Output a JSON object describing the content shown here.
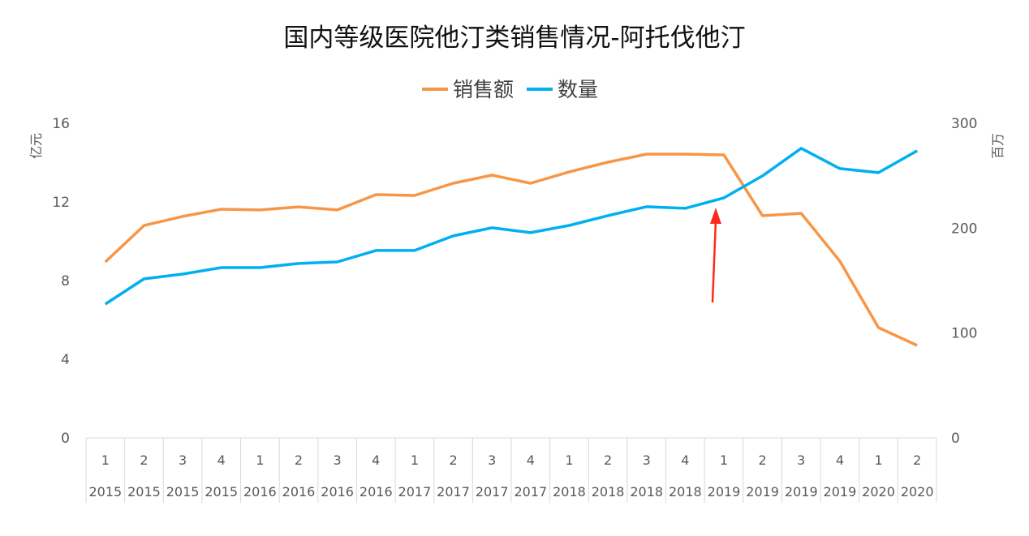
{
  "chart_data": {
    "type": "line",
    "title": "国内等级医院他汀类销售情况-阿托伐他汀",
    "ylabel_left": "亿元",
    "ylabel_right": "百万",
    "ylim_left": [
      0,
      16
    ],
    "ylim_right": [
      0,
      300
    ],
    "yticks_left": [
      "0",
      "4",
      "8",
      "12",
      "16"
    ],
    "yticks_right": [
      "0",
      "100",
      "200",
      "300"
    ],
    "legend_position": "top-center",
    "grid": false,
    "quarters": [
      "1",
      "2",
      "3",
      "4",
      "1",
      "2",
      "3",
      "4",
      "1",
      "2",
      "3",
      "4",
      "1",
      "2",
      "3",
      "4",
      "1",
      "2",
      "3",
      "4",
      "1",
      "2"
    ],
    "years": [
      "2015",
      "2015",
      "2015",
      "2015",
      "2016",
      "2016",
      "2016",
      "2016",
      "2017",
      "2017",
      "2017",
      "2017",
      "2018",
      "2018",
      "2018",
      "2018",
      "2019",
      "2019",
      "2019",
      "2019",
      "2020",
      "2020"
    ],
    "series": [
      {
        "name": "销售额",
        "axis": "left",
        "color": "#F79646",
        "values": [
          8.95,
          10.8,
          11.26,
          11.63,
          11.59,
          11.75,
          11.59,
          12.37,
          12.33,
          12.95,
          13.36,
          12.95,
          13.53,
          14.02,
          14.43,
          14.43,
          14.39,
          11.3,
          11.42,
          8.99,
          5.61,
          4.7
        ]
      },
      {
        "name": "数量",
        "axis": "right",
        "color": "#00B0F0",
        "values": [
          127.6,
          151.6,
          156.2,
          162.4,
          162.4,
          166.3,
          167.8,
          178.7,
          178.7,
          192.6,
          200.3,
          195.7,
          202.6,
          211.9,
          220.4,
          218.9,
          228.9,
          249.8,
          276.1,
          256.8,
          252.9,
          273.8
        ]
      }
    ],
    "annotation": {
      "type": "arrow",
      "color": "#FF2A1A",
      "points_at_index": 16
    }
  }
}
